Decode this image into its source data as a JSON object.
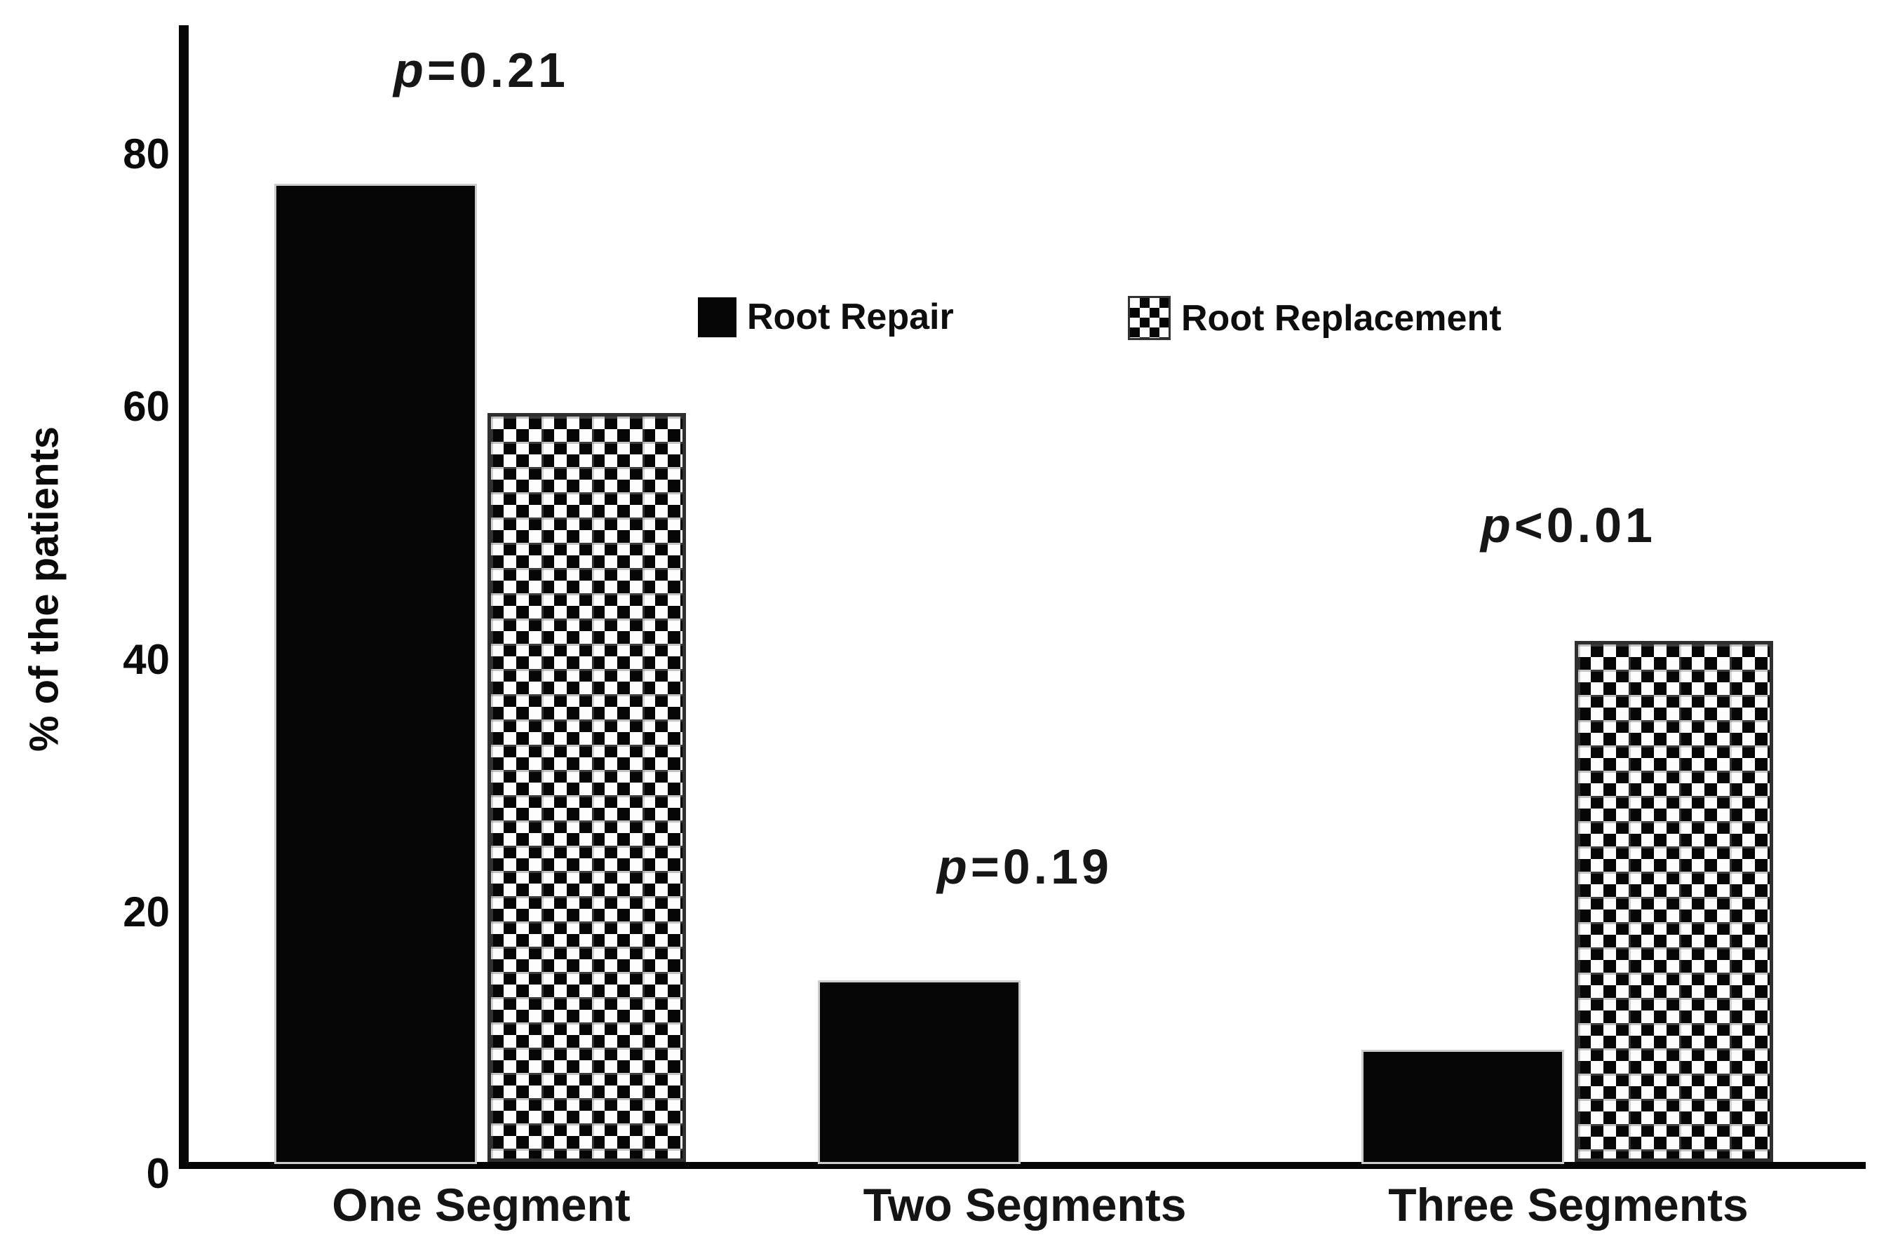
{
  "chart_data": {
    "type": "bar",
    "title": "",
    "ylabel": "% of the patients",
    "xlabel": "",
    "categories": [
      "One Segment",
      "Two Segments",
      "Three Segments"
    ],
    "series": [
      {
        "name": "Root Repair",
        "pattern": "solid",
        "values": [
          77.5,
          14.5,
          9
        ]
      },
      {
        "name": "Root Replacement",
        "pattern": "checkerboard",
        "values": [
          59.5,
          0,
          41.5
        ]
      }
    ],
    "ylim": [
      0,
      90
    ],
    "yticks": [
      0,
      20,
      40,
      60,
      80
    ],
    "grid": false,
    "legend_position": "upper-center-inside",
    "annotations": [
      {
        "label": "p=0.21",
        "italic_part": "p",
        "rest": "=0.21",
        "group": 0
      },
      {
        "label": "p=0.19",
        "italic_part": "p",
        "rest": "=0.19",
        "group": 1
      },
      {
        "label": "p<0.01",
        "italic_part": "p",
        "rest": "<0.01",
        "group": 2
      }
    ],
    "bar_color": "#000000",
    "text_color": "#111111",
    "background_color": "#ffffff"
  }
}
